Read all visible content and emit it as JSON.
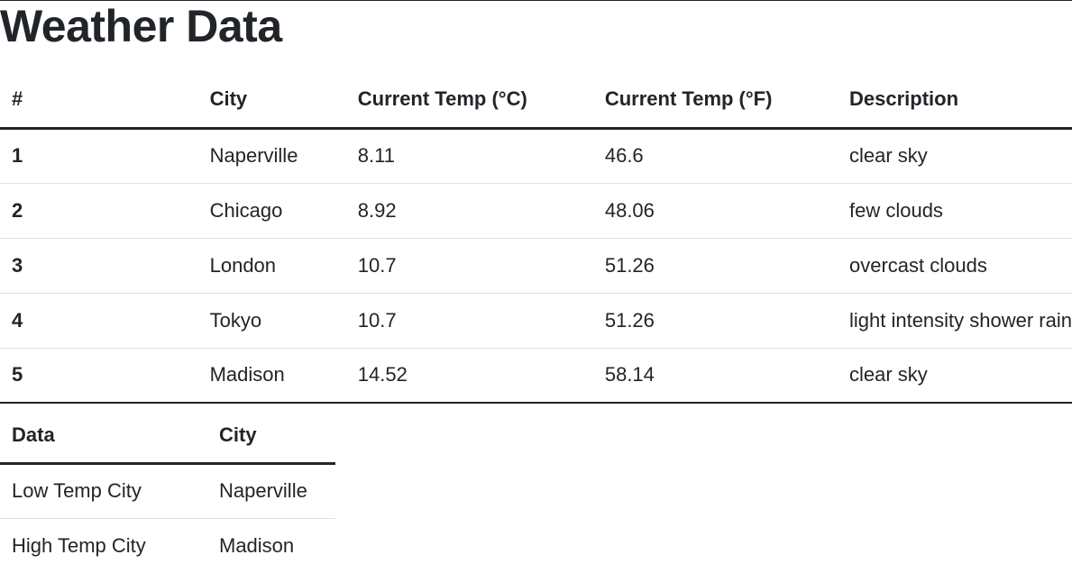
{
  "page": {
    "title": "Weather Data"
  },
  "weather_table": {
    "headers": [
      "#",
      "City",
      "Current Temp (°C)",
      "Current Temp (°F)",
      "Description"
    ],
    "rows": [
      {
        "num": "1",
        "city": "Naperville",
        "temp_c": "8.11",
        "temp_f": "46.6",
        "description": "clear sky"
      },
      {
        "num": "2",
        "city": "Chicago",
        "temp_c": "8.92",
        "temp_f": "48.06",
        "description": "few clouds"
      },
      {
        "num": "3",
        "city": "London",
        "temp_c": "10.7",
        "temp_f": "51.26",
        "description": "overcast clouds"
      },
      {
        "num": "4",
        "city": "Tokyo",
        "temp_c": "10.7",
        "temp_f": "51.26",
        "description": "light intensity shower rain"
      },
      {
        "num": "5",
        "city": "Madison",
        "temp_c": "14.52",
        "temp_f": "58.14",
        "description": "clear sky"
      }
    ]
  },
  "summary_table": {
    "headers": [
      "Data",
      "City"
    ],
    "rows": [
      {
        "label": "Low Temp City",
        "city": "Naperville"
      },
      {
        "label": "High Temp City",
        "city": "Madison"
      }
    ]
  }
}
